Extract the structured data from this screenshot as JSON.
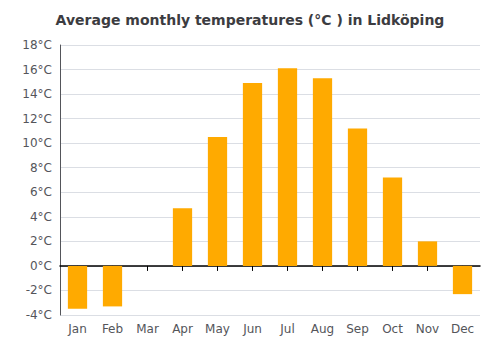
{
  "chart_data": {
    "type": "bar",
    "title": "Average monthly temperatures (°C ) in Lidköping",
    "categories": [
      "Jan",
      "Feb",
      "Mar",
      "Apr",
      "May",
      "Jun",
      "Jul",
      "Aug",
      "Sep",
      "Oct",
      "Nov",
      "Dec"
    ],
    "values": [
      -3.5,
      -3.3,
      0.0,
      4.7,
      10.5,
      14.9,
      16.1,
      15.3,
      11.2,
      7.2,
      2.0,
      -2.3
    ],
    "color": "#FFAA00",
    "ylim": [
      -4,
      18
    ],
    "yticks": [
      {
        "value": -4,
        "label": "-4°C"
      },
      {
        "value": -2,
        "label": "-2°C"
      },
      {
        "value": 0,
        "label": "0°C"
      },
      {
        "value": 2,
        "label": "2°C"
      },
      {
        "value": 4,
        "label": "4°C"
      },
      {
        "value": 6,
        "label": "6°C"
      },
      {
        "value": 8,
        "label": "8°C"
      },
      {
        "value": 10,
        "label": "10°C"
      },
      {
        "value": 12,
        "label": "12°C"
      },
      {
        "value": 14,
        "label": "14°C"
      },
      {
        "value": 16,
        "label": "16°C"
      },
      {
        "value": 18,
        "label": "18°C"
      }
    ],
    "grid": true
  }
}
